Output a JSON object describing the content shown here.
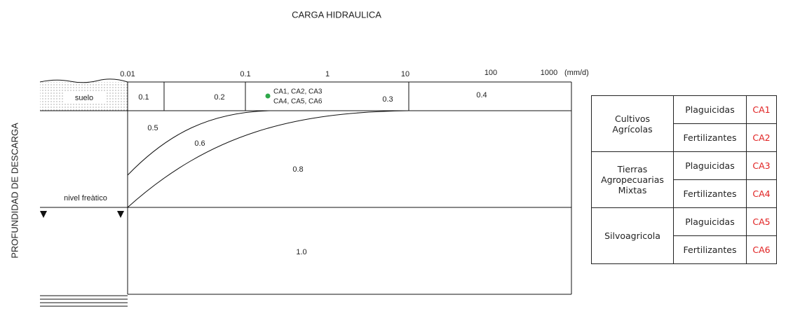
{
  "title": "CARGA HIDRAULICA",
  "y_axis_label": "PROFUNDIDAD DE DESCARGA",
  "axis": {
    "ticks": [
      "0.01",
      "0.1",
      "1",
      "10",
      "100",
      "1000"
    ],
    "unit": "(mm/d)"
  },
  "soil": {
    "label": "suelo",
    "zones": [
      "0.1",
      "0.2",
      "0.3",
      "0.4"
    ]
  },
  "point": {
    "labels": [
      "CA1, CA2, CA3",
      "CA4, CA5, CA6"
    ]
  },
  "zones": [
    "0.5",
    "0.6",
    "0.8",
    "1.0"
  ],
  "water_table": "nivel freàtico",
  "table": {
    "groups": [
      {
        "name": "Cultivos Agrícolas",
        "rows": [
          [
            "Plaguicidas",
            "CA1"
          ],
          [
            "Fertilizantes",
            "CA2"
          ]
        ]
      },
      {
        "name": "Tierras Agropecuarias Mixtas",
        "rows": [
          [
            "Plaguicidas",
            "CA3"
          ],
          [
            "Fertilizantes",
            "CA4"
          ]
        ]
      },
      {
        "name": "Silvoagricola",
        "rows": [
          [
            "Plaguicidas",
            "CA5"
          ],
          [
            "Fertilizantes",
            "CA6"
          ]
        ]
      }
    ]
  }
}
